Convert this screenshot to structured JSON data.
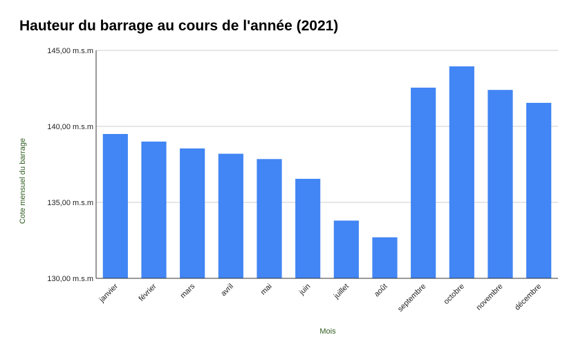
{
  "chart_data": {
    "type": "bar",
    "title": "Hauteur du barrage au cours de l'année (2021)",
    "xlabel": "Mois",
    "ylabel": "Cote mensuel du barrage",
    "categories": [
      "janvier",
      "février",
      "mars",
      "avril",
      "mai",
      "juin",
      "juillet",
      "août",
      "septembre",
      "octobre",
      "novembre",
      "décembre"
    ],
    "series": [
      {
        "values": [
          139.5,
          139.0,
          138.55,
          138.2,
          137.85,
          136.55,
          133.8,
          132.7,
          142.55,
          143.95,
          142.4,
          141.55
        ]
      }
    ],
    "ylim": [
      130,
      145
    ],
    "yticks": [
      130,
      135,
      140,
      145
    ],
    "ytick_labels": [
      "130,00 m.s.m",
      "135,00 m.s.m",
      "140,00 m.s.m",
      "145,00 m.s.m"
    ],
    "grid": true,
    "legend": "none",
    "bar_color": "#4285f4"
  }
}
